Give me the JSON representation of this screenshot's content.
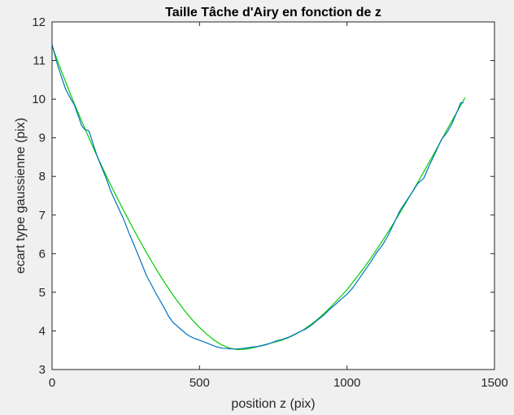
{
  "chart_data": {
    "type": "line",
    "title": "Taille Tâche d'Airy en fonction de z",
    "xlabel": "position z (pix)",
    "ylabel": "ecart type gaussienne (pix)",
    "xlim": [
      0,
      1500
    ],
    "ylim": [
      3,
      12
    ],
    "xticks": [
      0,
      500,
      1000,
      1500
    ],
    "yticks": [
      3,
      4,
      5,
      6,
      7,
      8,
      9,
      10,
      11,
      12
    ],
    "grid": false,
    "legend": false,
    "series": [
      {
        "color": "#00cc00",
        "style": "fit",
        "x": [
          0,
          25,
          50,
          75,
          100,
          125,
          150,
          175,
          200,
          225,
          250,
          275,
          300,
          325,
          350,
          375,
          400,
          425,
          450,
          475,
          500,
          525,
          550,
          575,
          600,
          625,
          650,
          675,
          700,
          725,
          750,
          775,
          800,
          825,
          850,
          875,
          900,
          925,
          950,
          975,
          1000,
          1025,
          1050,
          1075,
          1100,
          1125,
          1150,
          1175,
          1200,
          1225,
          1250,
          1275,
          1300,
          1325,
          1350,
          1375,
          1400
        ],
        "values": [
          11.38,
          10.86,
          10.37,
          9.89,
          9.44,
          9.0,
          8.57,
          8.16,
          7.76,
          7.38,
          7.01,
          6.65,
          6.3,
          5.96,
          5.64,
          5.33,
          5.04,
          4.77,
          4.52,
          4.29,
          4.09,
          3.91,
          3.76,
          3.64,
          3.56,
          3.52,
          3.52,
          3.55,
          3.6,
          3.65,
          3.7,
          3.75,
          3.82,
          3.91,
          4.02,
          4.15,
          4.3,
          4.47,
          4.66,
          4.86,
          5.07,
          5.31,
          5.56,
          5.82,
          6.1,
          6.39,
          6.69,
          7.0,
          7.32,
          7.65,
          7.98,
          8.32,
          8.66,
          9.01,
          9.36,
          9.7,
          10.04
        ]
      },
      {
        "color": "#0072bd",
        "style": "data",
        "x": [
          0,
          15,
          30,
          45,
          60,
          75,
          90,
          100,
          110,
          125,
          140,
          155,
          170,
          185,
          200,
          215,
          230,
          245,
          260,
          275,
          290,
          305,
          320,
          335,
          350,
          365,
          380,
          395,
          410,
          425,
          440,
          455,
          470,
          485,
          500,
          520,
          540,
          560,
          580,
          600,
          620,
          640,
          660,
          680,
          700,
          720,
          740,
          760,
          780,
          800,
          820,
          840,
          860,
          880,
          900,
          920,
          940,
          960,
          980,
          1000,
          1020,
          1040,
          1060,
          1080,
          1100,
          1120,
          1140,
          1160,
          1180,
          1200,
          1220,
          1240,
          1260,
          1280,
          1300,
          1320,
          1340,
          1355,
          1370,
          1385,
          1395
        ],
        "values": [
          11.42,
          10.98,
          10.62,
          10.28,
          10.05,
          9.86,
          9.55,
          9.32,
          9.22,
          9.18,
          8.82,
          8.48,
          8.2,
          7.92,
          7.6,
          7.35,
          7.1,
          6.85,
          6.55,
          6.28,
          6.0,
          5.72,
          5.43,
          5.22,
          5.0,
          4.8,
          4.6,
          4.38,
          4.22,
          4.12,
          4.02,
          3.92,
          3.85,
          3.8,
          3.76,
          3.7,
          3.64,
          3.58,
          3.55,
          3.54,
          3.53,
          3.54,
          3.56,
          3.58,
          3.6,
          3.63,
          3.68,
          3.74,
          3.78,
          3.83,
          3.9,
          3.98,
          4.05,
          4.15,
          4.28,
          4.4,
          4.55,
          4.68,
          4.82,
          4.95,
          5.12,
          5.34,
          5.56,
          5.78,
          6.02,
          6.22,
          6.48,
          6.8,
          7.12,
          7.35,
          7.58,
          7.82,
          7.95,
          8.3,
          8.62,
          8.95,
          9.15,
          9.35,
          9.62,
          9.9,
          9.91
        ]
      }
    ]
  }
}
